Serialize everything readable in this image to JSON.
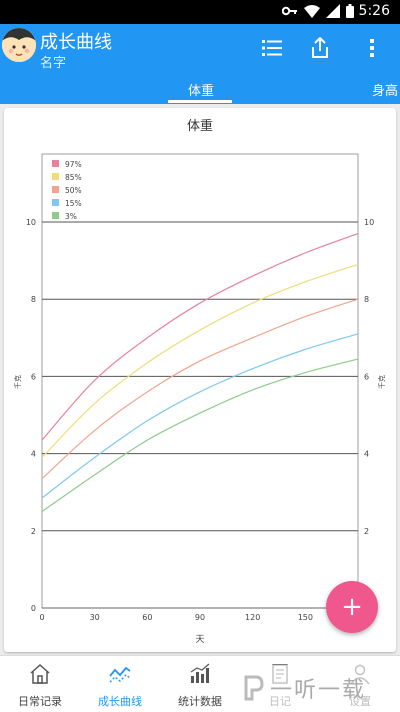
{
  "status_bar": {
    "time": "5:26",
    "icons": [
      "key-icon",
      "wifi-icon",
      "signal-icon",
      "battery-icon"
    ]
  },
  "header": {
    "title": "成长曲线",
    "subtitle": "名字",
    "actions": [
      "list-icon",
      "share-icon",
      "more-icon"
    ]
  },
  "tabs": [
    {
      "label": "体重",
      "active": true
    },
    {
      "label": "身高",
      "active": false
    }
  ],
  "chart_data": {
    "type": "line",
    "title": "体重",
    "xlabel": "天",
    "ylabel_left": "千克",
    "ylabel_right": "千克",
    "xlim": [
      0,
      180
    ],
    "ylim": [
      0,
      10
    ],
    "x_ticks": [
      0,
      30,
      60,
      90,
      120,
      150,
      180
    ],
    "y_ticks": [
      0,
      2,
      4,
      6,
      8,
      10
    ],
    "grid": "horizontal",
    "legend_position": "top-left",
    "x": [
      0,
      30,
      60,
      90,
      120,
      150,
      180
    ],
    "series": [
      {
        "name": "97%",
        "color": "#e8829c",
        "values": [
          4.35,
          5.9,
          7.0,
          7.9,
          8.6,
          9.2,
          9.7
        ]
      },
      {
        "name": "85%",
        "color": "#f0dc7a",
        "values": [
          3.9,
          5.3,
          6.35,
          7.2,
          7.9,
          8.45,
          8.9
        ]
      },
      {
        "name": "50%",
        "color": "#f0a58c",
        "values": [
          3.35,
          4.6,
          5.6,
          6.4,
          7.0,
          7.55,
          8.0
        ]
      },
      {
        "name": "15%",
        "color": "#7ec8f0",
        "values": [
          2.85,
          3.9,
          4.85,
          5.6,
          6.2,
          6.7,
          7.1
        ]
      },
      {
        "name": "3%",
        "color": "#8ecb8c",
        "values": [
          2.5,
          3.45,
          4.35,
          5.05,
          5.65,
          6.1,
          6.45
        ]
      }
    ]
  },
  "fab": {
    "label": "+"
  },
  "bottom_nav": [
    {
      "label": "日常记录",
      "icon": "home-icon",
      "active": false
    },
    {
      "label": "成长曲线",
      "icon": "trend-icon",
      "active": true
    },
    {
      "label": "统计数据",
      "icon": "bar-chart-icon",
      "active": false
    },
    {
      "label": "日记",
      "icon": "notebook-icon",
      "active": false
    },
    {
      "label": "设置",
      "icon": "person-icon",
      "active": false
    }
  ],
  "watermark": {
    "text": "一听一载"
  },
  "colors": {
    "primary": "#2196f3",
    "accent": "#f0588d",
    "grid": "#555555"
  }
}
